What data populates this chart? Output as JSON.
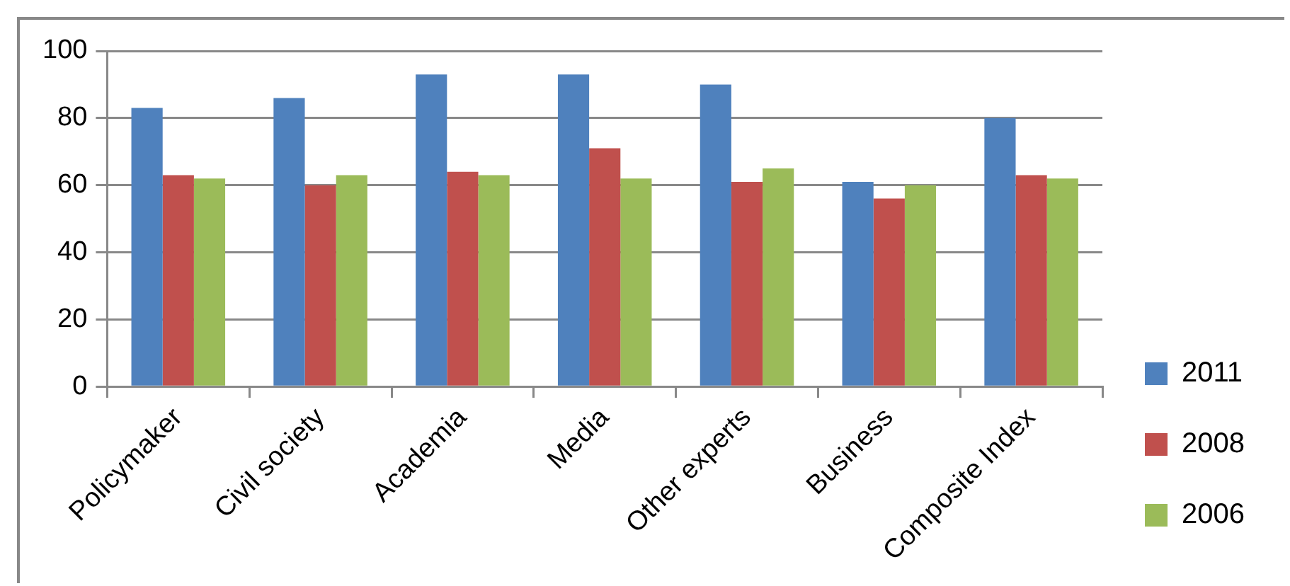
{
  "chart_data": {
    "type": "bar",
    "categories": [
      "Policymaker",
      "Civil society",
      "Academia",
      "Media",
      "Other experts",
      "Business",
      "Composite Index"
    ],
    "series": [
      {
        "name": "2011",
        "color": "#4f81bd",
        "values": [
          83,
          86,
          93,
          93,
          90,
          61,
          80
        ]
      },
      {
        "name": "2008",
        "color": "#c0504d",
        "values": [
          63,
          60,
          64,
          71,
          61,
          56,
          63
        ]
      },
      {
        "name": "2006",
        "color": "#9bbb59",
        "values": [
          62,
          63,
          63,
          62,
          65,
          60,
          62
        ]
      }
    ],
    "ylim": [
      0,
      100
    ],
    "yticks": [
      0,
      20,
      40,
      60,
      80,
      100
    ],
    "grid": "y",
    "legend": "right"
  }
}
